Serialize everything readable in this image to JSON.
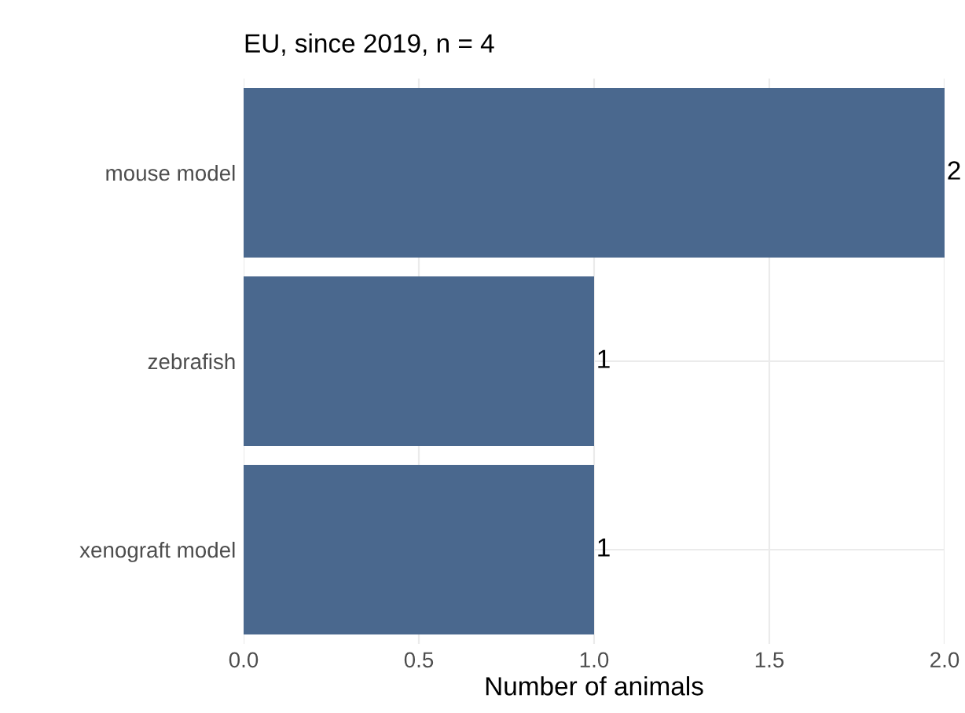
{
  "chart_data": {
    "type": "bar",
    "orientation": "horizontal",
    "title": "EU, since 2019, n = 4",
    "xlabel": "Number of animals",
    "categories": [
      "mouse model",
      "zebrafish",
      "xenograft model"
    ],
    "values": [
      2,
      1,
      1
    ],
    "color": "#4a688e",
    "xlim": [
      0,
      2.0
    ],
    "xticks": [
      {
        "value": 0,
        "label": "0.0"
      },
      {
        "value": 0.5,
        "label": "0.5"
      },
      {
        "value": 1.0,
        "label": "1.0"
      },
      {
        "value": 1.5,
        "label": "1.5"
      },
      {
        "value": 2.0,
        "label": "2.0"
      }
    ],
    "data_labels": true,
    "grid": true
  }
}
